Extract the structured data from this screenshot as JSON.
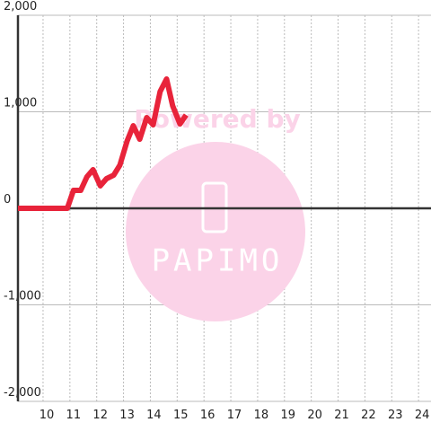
{
  "chart_data": {
    "type": "line",
    "x": [
      8.93,
      10.77,
      11.0,
      11.27,
      11.5,
      11.73,
      12.0,
      12.23,
      12.5,
      12.73,
      13.0,
      13.23,
      13.47,
      13.73,
      13.97,
      14.23,
      14.47,
      14.7,
      14.97,
      15.2
    ],
    "series": [
      {
        "color": "#e8233a",
        "values": [
          0,
          0,
          186,
          186,
          326,
          400,
          233,
          307,
          344,
          447,
          698,
          856,
          716,
          940,
          865,
          1209,
          1340,
          1060,
          874,
          967
        ]
      }
    ],
    "xlim": [
      8.93,
      24.33
    ],
    "xticks": [
      10,
      11,
      12,
      13,
      14,
      15,
      16,
      17,
      18,
      19,
      20,
      21,
      22,
      23,
      24
    ],
    "ylim": [
      -2000,
      2000
    ],
    "yticks": [
      {
        "value": 2000,
        "label": "2,000"
      },
      {
        "value": 1000,
        "label": "1,000"
      },
      0,
      {
        "value": -1000,
        "label": "-1,000"
      },
      {
        "value": -2000,
        "label": "-2,000"
      }
    ],
    "grid": true,
    "watermark": {
      "caption": "Powered by",
      "brand": "PAPIMO"
    }
  }
}
